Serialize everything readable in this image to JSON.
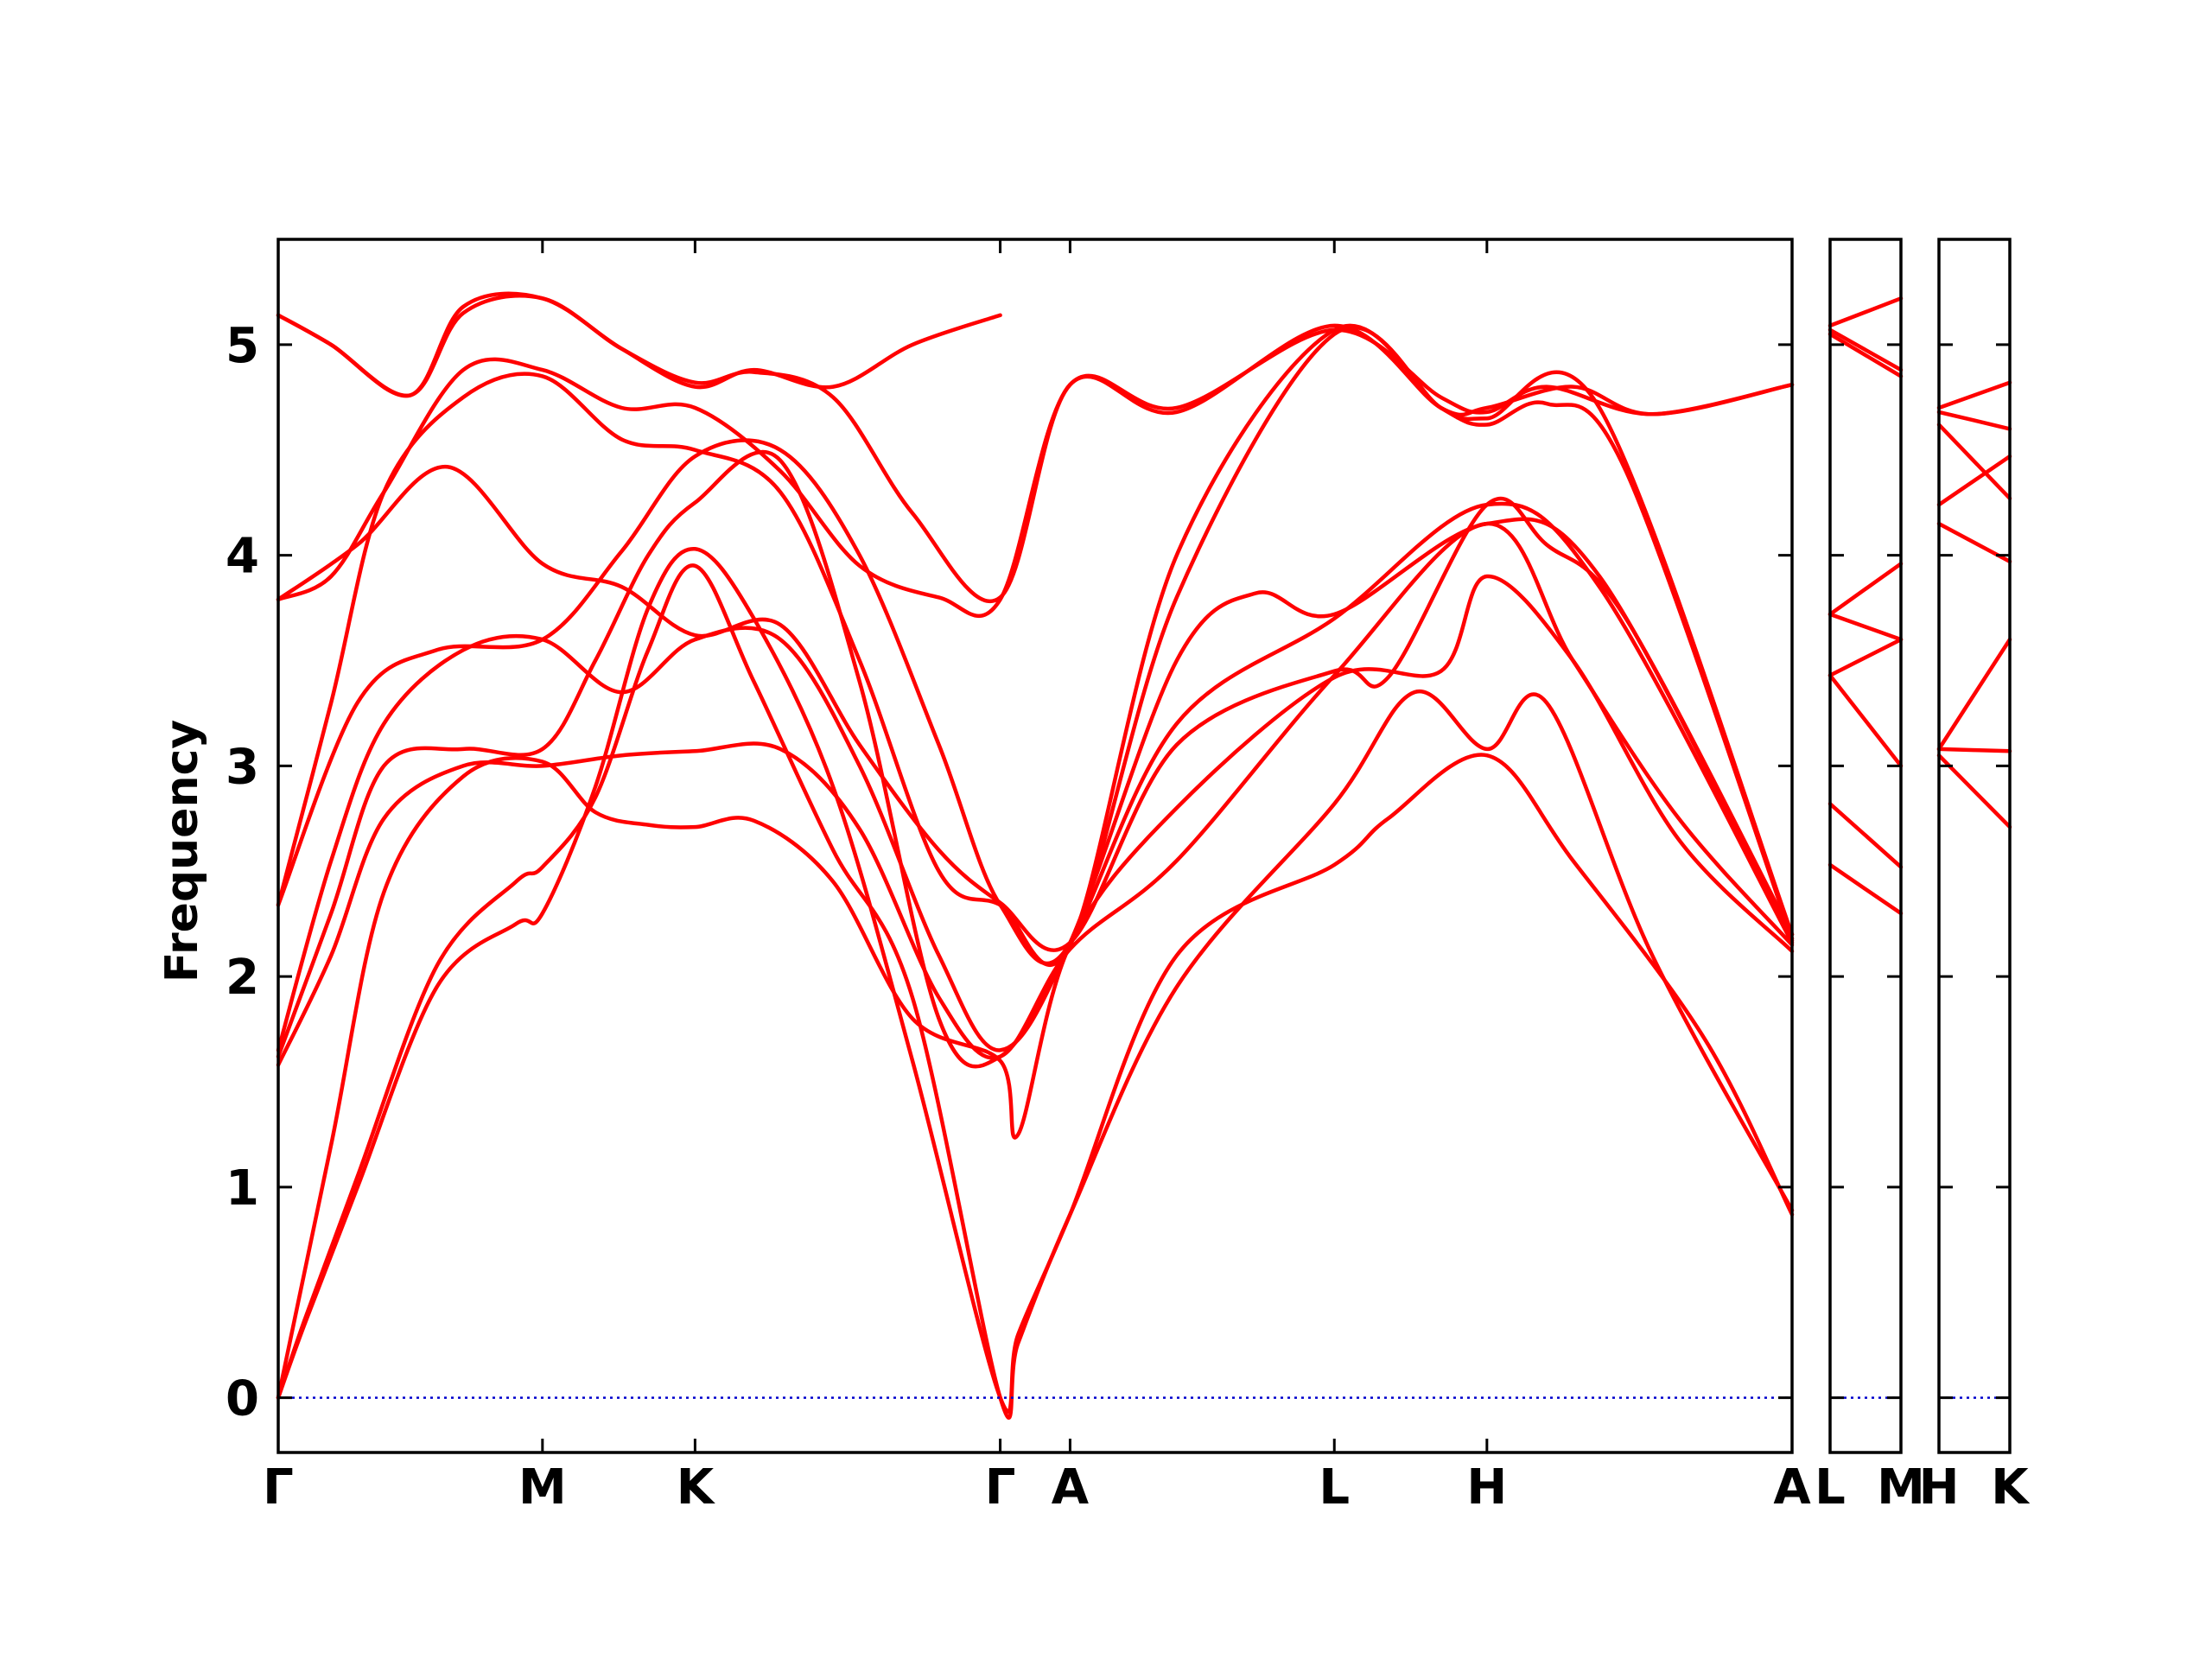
{
  "chart_data": {
    "type": "line",
    "title": "",
    "xlabel": "",
    "ylabel": "Frequency",
    "ylim": [
      -0.26,
      5.5
    ],
    "yticks": [
      0,
      1,
      2,
      3,
      4,
      5
    ],
    "grid": false,
    "colors": {
      "bands": "#ff0000",
      "zero_line": "#0000cc",
      "frame": "#000000"
    },
    "panels": [
      {
        "labels": [
          "Γ",
          "M",
          "K",
          "Γ",
          "A",
          "L",
          "H",
          "A"
        ],
        "x": [
          0,
          0.5,
          0.7887,
          1.3661,
          1.4983,
          1.9983,
          2.287,
          2.8644
        ]
      },
      {
        "labels": [
          "L",
          "M"
        ],
        "x": [
          0,
          0.1322
        ]
      },
      {
        "labels": [
          "H",
          "K"
        ],
        "x": [
          0,
          0.1322
        ]
      }
    ],
    "series": [
      {
        "values": [
          [
            0,
            0
          ],
          [
            0.05,
            0.35
          ],
          [
            0.15,
            1.0
          ],
          [
            0.3,
            1.95
          ],
          [
            0.45,
            2.25
          ],
          [
            0.5,
            2.3
          ],
          [
            0.6,
            2.9
          ],
          [
            0.7,
            3.75
          ],
          [
            0.7887,
            4.03
          ],
          [
            0.9,
            3.7
          ],
          [
            1.05,
            2.9
          ],
          [
            1.2,
            1.6
          ],
          [
            1.3661,
            0
          ],
          [
            1.4,
            0.3
          ],
          [
            1.4983,
            0.87
          ],
          [
            1.7,
            2.1
          ],
          [
            1.9983,
            2.53
          ],
          [
            2.1,
            2.75
          ],
          [
            2.287,
            3.05
          ],
          [
            2.45,
            2.55
          ],
          [
            2.7,
            1.7
          ],
          [
            2.8644,
            0.87
          ]
        ]
      },
      {
        "values": [
          [
            0,
            0
          ],
          [
            0.05,
            0.37
          ],
          [
            0.15,
            1.05
          ],
          [
            0.3,
            2.05
          ],
          [
            0.45,
            2.45
          ],
          [
            0.5,
            2.52
          ],
          [
            0.6,
            2.85
          ],
          [
            0.7,
            3.55
          ],
          [
            0.7887,
            3.95
          ],
          [
            0.9,
            3.4
          ],
          [
            1.05,
            2.6
          ],
          [
            1.2,
            1.9
          ],
          [
            1.3661,
            0
          ],
          [
            1.4,
            0.26
          ],
          [
            1.4983,
            0.87
          ],
          [
            1.7,
            1.95
          ],
          [
            1.9983,
            2.82
          ],
          [
            2.15,
            3.35
          ],
          [
            2.287,
            3.08
          ],
          [
            2.4,
            3.3
          ],
          [
            2.6,
            2.1
          ],
          [
            2.8644,
            0.89
          ]
        ]
      },
      {
        "values": [
          [
            0,
            0
          ],
          [
            0.1,
            1.2
          ],
          [
            0.2,
            2.4
          ],
          [
            0.35,
            2.95
          ],
          [
            0.5,
            3.02
          ],
          [
            0.6,
            2.78
          ],
          [
            0.7,
            2.72
          ],
          [
            0.7887,
            2.71
          ],
          [
            0.9,
            2.74
          ],
          [
            1.05,
            2.45
          ],
          [
            1.2,
            1.8
          ],
          [
            1.3661,
            1.6
          ],
          [
            1.4,
            1.25
          ],
          [
            1.4983,
            2.15
          ],
          [
            1.7,
            2.8
          ],
          [
            1.9983,
            3.42
          ],
          [
            2.2,
            3.45
          ],
          [
            2.287,
            3.9
          ],
          [
            2.45,
            3.5
          ],
          [
            2.65,
            2.65
          ],
          [
            2.8644,
            2.12
          ]
        ]
      },
      {
        "values": [
          [
            0,
            1.58
          ],
          [
            0.1,
            2.1
          ],
          [
            0.2,
            2.75
          ],
          [
            0.35,
            3.0
          ],
          [
            0.5,
            3.0
          ],
          [
            0.65,
            3.05
          ],
          [
            0.7887,
            3.07
          ],
          [
            0.95,
            3.08
          ],
          [
            1.1,
            2.7
          ],
          [
            1.25,
            1.9
          ],
          [
            1.3661,
            1.62
          ],
          [
            1.4983,
            2.13
          ],
          [
            1.7,
            2.55
          ],
          [
            1.9983,
            3.43
          ],
          [
            2.287,
            4.15
          ],
          [
            2.45,
            3.5
          ],
          [
            2.65,
            2.75
          ],
          [
            2.8644,
            2.15
          ]
        ]
      },
      {
        "values": [
          [
            0,
            1.62
          ],
          [
            0.1,
            2.3
          ],
          [
            0.2,
            3.0
          ],
          [
            0.35,
            3.08
          ],
          [
            0.5,
            3.08
          ],
          [
            0.6,
            3.5
          ],
          [
            0.7,
            4.0
          ],
          [
            0.7887,
            4.25
          ],
          [
            0.95,
            4.45
          ],
          [
            1.1,
            3.4
          ],
          [
            1.25,
            1.8
          ],
          [
            1.3661,
            1.62
          ],
          [
            1.4983,
            2.15
          ],
          [
            1.7,
            3.2
          ],
          [
            1.9983,
            3.7
          ],
          [
            2.287,
            4.24
          ],
          [
            2.5,
            3.85
          ],
          [
            2.8644,
            2.16
          ]
        ]
      },
      {
        "values": [
          [
            0,
            1.65
          ],
          [
            0.1,
            2.55
          ],
          [
            0.2,
            3.2
          ],
          [
            0.35,
            3.55
          ],
          [
            0.5,
            3.6
          ],
          [
            0.65,
            3.35
          ],
          [
            0.7887,
            3.6
          ],
          [
            0.95,
            3.6
          ],
          [
            1.1,
            3.0
          ],
          [
            1.25,
            2.1
          ],
          [
            1.3661,
            1.65
          ],
          [
            1.4983,
            2.16
          ],
          [
            1.7,
            3.5
          ],
          [
            1.85,
            3.82
          ],
          [
            1.9983,
            3.72
          ],
          [
            2.287,
            4.15
          ],
          [
            2.5,
            3.9
          ],
          [
            2.8644,
            2.17
          ]
        ]
      },
      {
        "values": [
          [
            0,
            2.34
          ],
          [
            0.15,
            3.3
          ],
          [
            0.3,
            3.55
          ],
          [
            0.5,
            3.6
          ],
          [
            0.65,
            4.02
          ],
          [
            0.7887,
            4.47
          ],
          [
            0.95,
            4.5
          ],
          [
            1.1,
            4.0
          ],
          [
            1.25,
            3.1
          ],
          [
            1.3661,
            2.34
          ],
          [
            1.4983,
            2.16
          ],
          [
            1.7,
            3.8
          ],
          [
            1.9983,
            5.05
          ],
          [
            2.2,
            4.7
          ],
          [
            2.287,
            4.62
          ],
          [
            2.4,
            4.72
          ],
          [
            2.55,
            4.4
          ],
          [
            2.8644,
            2.18
          ]
        ]
      },
      {
        "values": [
          [
            0,
            2.34
          ],
          [
            0.1,
            3.3
          ],
          [
            0.2,
            4.3
          ],
          [
            0.35,
            4.75
          ],
          [
            0.5,
            4.85
          ],
          [
            0.65,
            4.55
          ],
          [
            0.7887,
            4.5
          ],
          [
            0.95,
            4.3
          ],
          [
            1.1,
            3.5
          ],
          [
            1.25,
            2.5
          ],
          [
            1.3661,
            2.34
          ],
          [
            1.4983,
            2.15
          ],
          [
            1.7,
            4.0
          ],
          [
            1.9983,
            5.07
          ],
          [
            2.2,
            4.7
          ],
          [
            2.287,
            4.65
          ],
          [
            2.5,
            4.7
          ],
          [
            2.8644,
            2.2
          ]
        ]
      },
      {
        "values": [
          [
            0,
            3.79
          ],
          [
            0.15,
            4.05
          ],
          [
            0.32,
            4.42
          ],
          [
            0.5,
            3.96
          ],
          [
            0.65,
            3.85
          ],
          [
            0.7887,
            3.62
          ],
          [
            0.95,
            3.67
          ],
          [
            1.1,
            3.1
          ],
          [
            1.25,
            2.6
          ],
          [
            1.3661,
            2.35
          ],
          [
            1.4983,
            2.16
          ],
          [
            1.7,
            3.1
          ],
          [
            1.9983,
            3.45
          ],
          [
            2.1,
            3.42
          ],
          [
            2.287,
            4.24
          ],
          [
            2.4,
            4.05
          ],
          [
            2.55,
            3.7
          ],
          [
            2.8644,
            2.2
          ]
        ]
      },
      {
        "values": [
          [
            0,
            3.79
          ],
          [
            0.1,
            3.9
          ],
          [
            0.2,
            4.3
          ],
          [
            0.35,
            4.88
          ],
          [
            0.5,
            4.88
          ],
          [
            0.65,
            4.7
          ],
          [
            0.7887,
            4.7
          ],
          [
            0.95,
            4.4
          ],
          [
            1.1,
            3.95
          ],
          [
            1.25,
            3.8
          ],
          [
            1.3661,
            3.79
          ],
          [
            1.4983,
            4.81
          ],
          [
            1.7,
            4.7
          ],
          [
            1.9983,
            5.07
          ],
          [
            2.2,
            4.75
          ],
          [
            2.287,
            4.68
          ],
          [
            2.4,
            4.8
          ],
          [
            2.6,
            4.67
          ],
          [
            2.8644,
            4.81
          ]
        ]
      },
      {
        "values": [
          [
            0,
            5.14
          ],
          [
            0.1,
            5.0
          ],
          [
            0.25,
            4.76
          ],
          [
            0.35,
            5.15
          ],
          [
            0.5,
            5.22
          ],
          [
            0.65,
            4.98
          ],
          [
            0.7887,
            4.82
          ],
          [
            0.9,
            4.87
          ],
          [
            1.05,
            4.75
          ],
          [
            1.2,
            4.2
          ],
          [
            1.3661,
            3.8
          ],
          [
            1.4983,
            4.81
          ],
          [
            1.7,
            4.68
          ],
          [
            1.9983,
            5.09
          ],
          [
            2.2,
            4.7
          ],
          [
            2.287,
            4.7
          ],
          [
            2.45,
            4.8
          ],
          [
            2.6,
            4.67
          ],
          [
            2.8644,
            4.81
          ]
        ]
      },
      {
        "values": [
          [
            0,
            5.14
          ],
          [
            0.1,
            5.0
          ],
          [
            0.25,
            4.76
          ],
          [
            0.35,
            5.18
          ],
          [
            0.5,
            5.22
          ],
          [
            0.65,
            4.98
          ],
          [
            0.7887,
            4.8
          ],
          [
            0.9,
            4.88
          ],
          [
            1.05,
            4.8
          ],
          [
            1.2,
            5.0
          ],
          [
            1.3661,
            5.14
          ]
        ]
      }
    ],
    "panel2_series": [
      {
        "values": [
          [
            0,
            2.53
          ],
          [
            0.1322,
            2.3
          ]
        ]
      },
      {
        "values": [
          [
            0,
            2.82
          ],
          [
            0.1322,
            2.52
          ]
        ]
      },
      {
        "values": [
          [
            0,
            3.43
          ],
          [
            0.1322,
            3.0
          ]
        ]
      },
      {
        "values": [
          [
            0,
            3.43
          ],
          [
            0.1322,
            3.6
          ]
        ]
      },
      {
        "values": [
          [
            0,
            3.72
          ],
          [
            0.1322,
            3.6
          ]
        ]
      },
      {
        "values": [
          [
            0,
            3.72
          ],
          [
            0.1322,
            3.96
          ]
        ]
      },
      {
        "values": [
          [
            0,
            5.05
          ],
          [
            0.1322,
            4.85
          ]
        ]
      },
      {
        "values": [
          [
            0,
            5.07
          ],
          [
            0.1322,
            4.88
          ]
        ]
      },
      {
        "values": [
          [
            0,
            5.09
          ],
          [
            0.1322,
            5.22
          ]
        ]
      }
    ],
    "panel3_series": [
      {
        "values": [
          [
            0,
            3.05
          ],
          [
            0.1322,
            2.71
          ]
        ]
      },
      {
        "values": [
          [
            0,
            3.08
          ],
          [
            0.1322,
            3.07
          ]
        ]
      },
      {
        "values": [
          [
            0,
            3.08
          ],
          [
            0.1322,
            3.6
          ]
        ]
      },
      {
        "values": [
          [
            0,
            4.15
          ],
          [
            0.1322,
            3.97
          ]
        ]
      },
      {
        "values": [
          [
            0,
            4.24
          ],
          [
            0.1322,
            4.47
          ]
        ]
      },
      {
        "values": [
          [
            0,
            4.62
          ],
          [
            0.1322,
            4.27
          ]
        ]
      },
      {
        "values": [
          [
            0,
            4.68
          ],
          [
            0.1322,
            4.6
          ]
        ]
      },
      {
        "values": [
          [
            0,
            4.7
          ],
          [
            0.1322,
            4.82
          ]
        ]
      }
    ]
  }
}
